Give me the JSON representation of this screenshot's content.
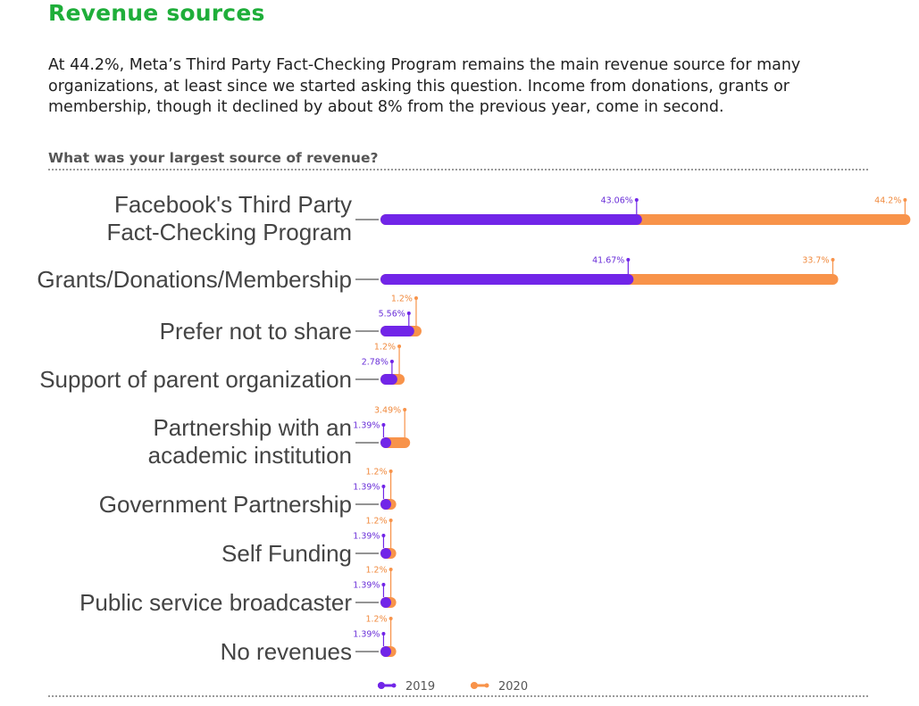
{
  "header": {
    "title": "Revenue sources",
    "intro": "At 44.2%, Meta’s Third Party Fact-Checking Program remains the main revenue source for many organizations, at least since we started asking this question. Income from donations, grants or membership, though it declined by about 8% from the previous year, come in second.",
    "question": "What was your largest source of revenue?"
  },
  "colors": {
    "2019": "#7125e8",
    "2020": "#f8934a",
    "label_2019": "#6a2fd8",
    "label_2020": "#f08a3e"
  },
  "chart_data": {
    "type": "bar",
    "orientation": "horizontal",
    "title": "What was your largest source of revenue?",
    "categories": [
      "Facebook's Third Party Fact-Checking Program",
      "Grants/Donations/Membership",
      "Prefer not to share",
      "Support of parent organization",
      "Partnership with an academic institution",
      "Government Partnership",
      "Self Funding",
      "Public service broadcaster",
      "No revenues"
    ],
    "category_lines": [
      [
        "Facebook's Third Party",
        "Fact-Checking Program"
      ],
      [
        "Grants/Donations/Membership"
      ],
      [
        "Prefer not to share"
      ],
      [
        "Support of parent organization"
      ],
      [
        "Partnership with an",
        "academic institution"
      ],
      [
        "Government Partnership"
      ],
      [
        "Self Funding"
      ],
      [
        "Public service broadcaster"
      ],
      [
        "No revenues"
      ]
    ],
    "series": [
      {
        "name": "2019",
        "values": [
          43.06,
          41.67,
          5.56,
          2.78,
          1.39,
          1.39,
          1.39,
          1.39,
          1.39
        ],
        "labels": [
          "43.06%",
          "41.67%",
          "5.56%",
          "2.78%",
          "1.39%",
          "1.39%",
          "1.39%",
          "1.39%",
          "1.39%"
        ]
      },
      {
        "name": "2020",
        "values": [
          44.2,
          33.7,
          1.2,
          1.2,
          3.49,
          1.2,
          1.2,
          1.2,
          1.2
        ],
        "labels": [
          "44.2%",
          "33.7%",
          "1.2%",
          "1.2%",
          "3.49%",
          "1.2%",
          "1.2%",
          "1.2%",
          "1.2%"
        ]
      }
    ],
    "stacked": true,
    "legend": {
      "position": "bottom",
      "entries": [
        "2019",
        "2020"
      ]
    },
    "grid": false
  }
}
